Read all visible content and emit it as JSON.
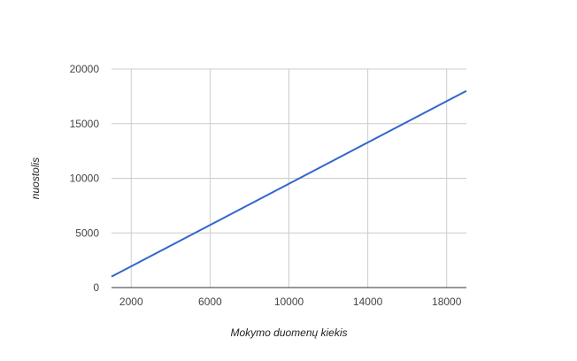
{
  "chart_data": {
    "type": "line",
    "title": "",
    "xlabel": "Mokymo duomenų kiekis",
    "ylabel": "nuostolis",
    "xlim": [
      1000,
      19000
    ],
    "ylim": [
      0,
      20000
    ],
    "x_ticks": [
      2000,
      6000,
      10000,
      14000,
      18000
    ],
    "y_ticks": [
      0,
      5000,
      10000,
      15000,
      20000
    ],
    "x_tick_labels": [
      "2000",
      "6000",
      "10000",
      "14000",
      "18000"
    ],
    "y_tick_labels": [
      "0",
      "5000",
      "10000",
      "15000",
      "20000"
    ],
    "grid": true,
    "legend": "none",
    "series": [
      {
        "color": "#3366cc",
        "x": [
          1000,
          19000
        ],
        "y": [
          1000,
          18000
        ]
      }
    ]
  }
}
